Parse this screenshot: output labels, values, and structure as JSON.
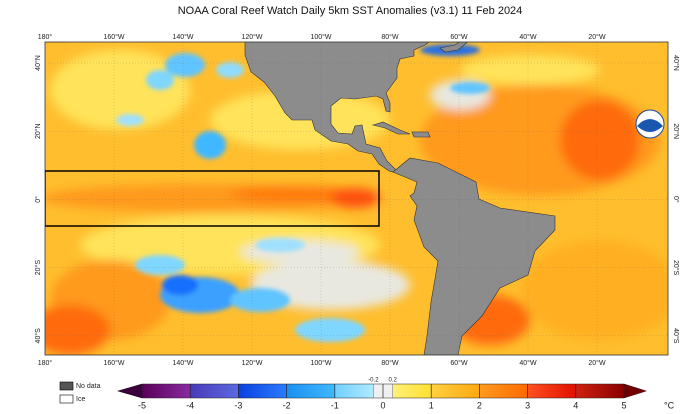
{
  "title": "NOAA Coral Reef Watch Daily 5km SST Anomalies  (v3.1)   11 Feb 2024",
  "lon_labels": [
    "180°",
    "160°W",
    "140°W",
    "120°W",
    "100°W",
    "80°W",
    "60°W",
    "40°W",
    "20°W"
  ],
  "lat_labels": [
    "40°N",
    "20°N",
    "0°",
    "20°S",
    "40°S"
  ],
  "legend": {
    "no_data": "No data",
    "ice": "Ice"
  },
  "colorbar": {
    "ticks": [
      -5,
      -4,
      -3,
      -2,
      -1,
      0,
      1,
      2,
      3,
      4,
      5
    ],
    "inner_ticks": [
      -0.2,
      0.2
    ],
    "unit": "°C"
  }
}
